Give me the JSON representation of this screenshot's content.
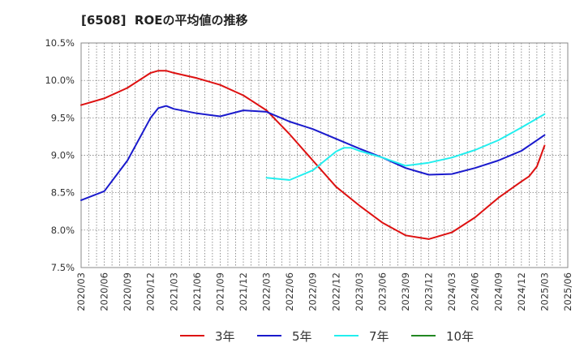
{
  "chart_data": {
    "type": "line",
    "title": "[6508]  ROEの平均値の推移",
    "xlabel": "",
    "ylabel": "",
    "ylim": [
      7.5,
      10.5
    ],
    "y_ticks": [
      {
        "value": 7.5,
        "label": "7.5%"
      },
      {
        "value": 8.0,
        "label": "8.0%"
      },
      {
        "value": 8.5,
        "label": "8.5%"
      },
      {
        "value": 9.0,
        "label": "9.0%"
      },
      {
        "value": 9.5,
        "label": "9.5%"
      },
      {
        "value": 10.0,
        "label": "10.0%"
      },
      {
        "value": 10.5,
        "label": "10.5%"
      }
    ],
    "x_ticks": [
      "2020/03",
      "2020/06",
      "2020/09",
      "2020/12",
      "2021/03",
      "2021/06",
      "2021/09",
      "2021/12",
      "2022/03",
      "2022/06",
      "2022/09",
      "2022/12",
      "2023/03",
      "2023/06",
      "2023/09",
      "2023/12",
      "2024/03",
      "2024/06",
      "2024/09",
      "2024/12",
      "2025/03",
      "2025/06"
    ],
    "grid": true,
    "legend_position": "bottom",
    "series": [
      {
        "name": "3年",
        "color": "#dd1111",
        "points": [
          [
            "2020/03",
            9.67
          ],
          [
            "2020/06",
            9.76
          ],
          [
            "2020/09",
            9.9
          ],
          [
            "2020/12",
            10.1
          ],
          [
            "2021/01",
            10.13
          ],
          [
            "2021/02",
            10.13
          ],
          [
            "2021/03",
            10.1
          ],
          [
            "2021/06",
            10.03
          ],
          [
            "2021/09",
            9.94
          ],
          [
            "2021/12",
            9.8
          ],
          [
            "2022/03",
            9.6
          ],
          [
            "2022/06",
            9.28
          ],
          [
            "2022/09",
            8.93
          ],
          [
            "2022/12",
            8.58
          ],
          [
            "2023/03",
            8.33
          ],
          [
            "2023/06",
            8.1
          ],
          [
            "2023/09",
            7.93
          ],
          [
            "2023/12",
            7.88
          ],
          [
            "2024/03",
            7.97
          ],
          [
            "2024/06",
            8.17
          ],
          [
            "2024/09",
            8.43
          ],
          [
            "2024/12",
            8.65
          ],
          [
            "2025/01",
            8.72
          ],
          [
            "2025/02",
            8.85
          ],
          [
            "2025/03",
            9.13
          ]
        ]
      },
      {
        "name": "5年",
        "color": "#1a1acc",
        "points": [
          [
            "2020/03",
            8.4
          ],
          [
            "2020/06",
            8.52
          ],
          [
            "2020/09",
            8.93
          ],
          [
            "2020/12",
            9.5
          ],
          [
            "2021/01",
            9.63
          ],
          [
            "2021/02",
            9.66
          ],
          [
            "2021/03",
            9.62
          ],
          [
            "2021/06",
            9.56
          ],
          [
            "2021/09",
            9.52
          ],
          [
            "2021/12",
            9.6
          ],
          [
            "2022/03",
            9.58
          ],
          [
            "2022/06",
            9.45
          ],
          [
            "2022/09",
            9.35
          ],
          [
            "2022/12",
            9.22
          ],
          [
            "2023/03",
            9.09
          ],
          [
            "2023/06",
            8.97
          ],
          [
            "2023/09",
            8.83
          ],
          [
            "2023/12",
            8.74
          ],
          [
            "2024/03",
            8.75
          ],
          [
            "2024/06",
            8.83
          ],
          [
            "2024/09",
            8.93
          ],
          [
            "2024/12",
            9.06
          ],
          [
            "2025/03",
            9.27
          ]
        ]
      },
      {
        "name": "7年",
        "color": "#22eeee",
        "points": [
          [
            "2022/03",
            8.7
          ],
          [
            "2022/06",
            8.67
          ],
          [
            "2022/09",
            8.8
          ],
          [
            "2022/12",
            9.05
          ],
          [
            "2023/01",
            9.1
          ],
          [
            "2023/02",
            9.1
          ],
          [
            "2023/03",
            9.06
          ],
          [
            "2023/06",
            8.97
          ],
          [
            "2023/09",
            8.86
          ],
          [
            "2023/12",
            8.9
          ],
          [
            "2024/03",
            8.97
          ],
          [
            "2024/06",
            9.07
          ],
          [
            "2024/09",
            9.2
          ],
          [
            "2024/12",
            9.37
          ],
          [
            "2025/03",
            9.55
          ]
        ]
      },
      {
        "name": "10年",
        "color": "#228822",
        "points": []
      }
    ]
  }
}
